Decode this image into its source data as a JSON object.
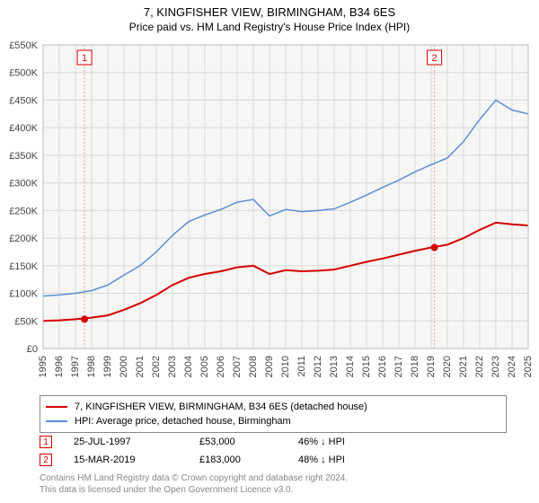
{
  "title": "7, KINGFISHER VIEW, BIRMINGHAM, B34 6ES",
  "subtitle": "Price paid vs. HM Land Registry's House Price Index (HPI)",
  "chart": {
    "type": "line",
    "background_color": "#f6f6f4",
    "grid_color": "#d8d8d8",
    "x": {
      "min": 1995,
      "max": 2025,
      "ticks": [
        1995,
        1996,
        1997,
        1998,
        1999,
        2000,
        2001,
        2002,
        2003,
        2004,
        2005,
        2006,
        2007,
        2008,
        2009,
        2010,
        2011,
        2012,
        2013,
        2014,
        2015,
        2016,
        2017,
        2018,
        2019,
        2020,
        2021,
        2022,
        2023,
        2024,
        2025
      ]
    },
    "y": {
      "min": 0,
      "max": 550000,
      "ticks": [
        0,
        50000,
        100000,
        150000,
        200000,
        250000,
        300000,
        350000,
        400000,
        450000,
        500000,
        550000
      ],
      "tick_labels": [
        "£0",
        "£50K",
        "£100K",
        "£150K",
        "£200K",
        "£250K",
        "£300K",
        "£350K",
        "£400K",
        "£450K",
        "£500K",
        "£550K"
      ]
    },
    "series": [
      {
        "name": "property",
        "label": "7, KINGFISHER VIEW, BIRMINGHAM, B34 6ES (detached house)",
        "color": "#d40000",
        "width": 2,
        "points": [
          [
            1995,
            50000
          ],
          [
            1996,
            51000
          ],
          [
            1997,
            53000
          ],
          [
            1998,
            56000
          ],
          [
            1999,
            60000
          ],
          [
            2000,
            70000
          ],
          [
            2001,
            82000
          ],
          [
            2002,
            97000
          ],
          [
            2003,
            115000
          ],
          [
            2004,
            128000
          ],
          [
            2005,
            135000
          ],
          [
            2006,
            140000
          ],
          [
            2007,
            147000
          ],
          [
            2008,
            150000
          ],
          [
            2009,
            135000
          ],
          [
            2010,
            142000
          ],
          [
            2011,
            140000
          ],
          [
            2012,
            141000
          ],
          [
            2013,
            143000
          ],
          [
            2014,
            150000
          ],
          [
            2015,
            157000
          ],
          [
            2016,
            163000
          ],
          [
            2017,
            170000
          ],
          [
            2018,
            177000
          ],
          [
            2019,
            183000
          ],
          [
            2020,
            188000
          ],
          [
            2021,
            200000
          ],
          [
            2022,
            215000
          ],
          [
            2023,
            228000
          ],
          [
            2024,
            225000
          ],
          [
            2025,
            223000
          ]
        ]
      },
      {
        "name": "hpi",
        "label": "HPI: Average price, detached house, Birmingham",
        "color": "#5b8fd6",
        "width": 1.5,
        "points": [
          [
            1995,
            95000
          ],
          [
            1996,
            97000
          ],
          [
            1997,
            100000
          ],
          [
            1998,
            105000
          ],
          [
            1999,
            115000
          ],
          [
            2000,
            133000
          ],
          [
            2001,
            150000
          ],
          [
            2002,
            175000
          ],
          [
            2003,
            205000
          ],
          [
            2004,
            230000
          ],
          [
            2005,
            242000
          ],
          [
            2006,
            252000
          ],
          [
            2007,
            265000
          ],
          [
            2008,
            270000
          ],
          [
            2009,
            240000
          ],
          [
            2010,
            252000
          ],
          [
            2011,
            248000
          ],
          [
            2012,
            250000
          ],
          [
            2013,
            253000
          ],
          [
            2014,
            265000
          ],
          [
            2015,
            278000
          ],
          [
            2016,
            292000
          ],
          [
            2017,
            305000
          ],
          [
            2018,
            320000
          ],
          [
            2019,
            333000
          ],
          [
            2020,
            345000
          ],
          [
            2021,
            375000
          ],
          [
            2022,
            415000
          ],
          [
            2023,
            450000
          ],
          [
            2024,
            432000
          ],
          [
            2025,
            425000
          ]
        ]
      }
    ],
    "sale_markers": [
      {
        "n": "1",
        "x": 1997.56,
        "y": 53000,
        "color": "#d40000"
      },
      {
        "n": "2",
        "x": 2019.2,
        "y": 183000,
        "color": "#d40000"
      }
    ],
    "marker_vlines_color": "#e6a0a0"
  },
  "sales": [
    {
      "n": "1",
      "date": "25-JUL-1997",
      "price": "£53,000",
      "hpi": "46% ↓ HPI",
      "box_color": "#d40000"
    },
    {
      "n": "2",
      "date": "15-MAR-2019",
      "price": "£183,000",
      "hpi": "48% ↓ HPI",
      "box_color": "#d40000"
    }
  ],
  "footer": {
    "line1": "Contains HM Land Registry data © Crown copyright and database right 2024.",
    "line2": "This data is licensed under the Open Government Licence v3.0."
  }
}
